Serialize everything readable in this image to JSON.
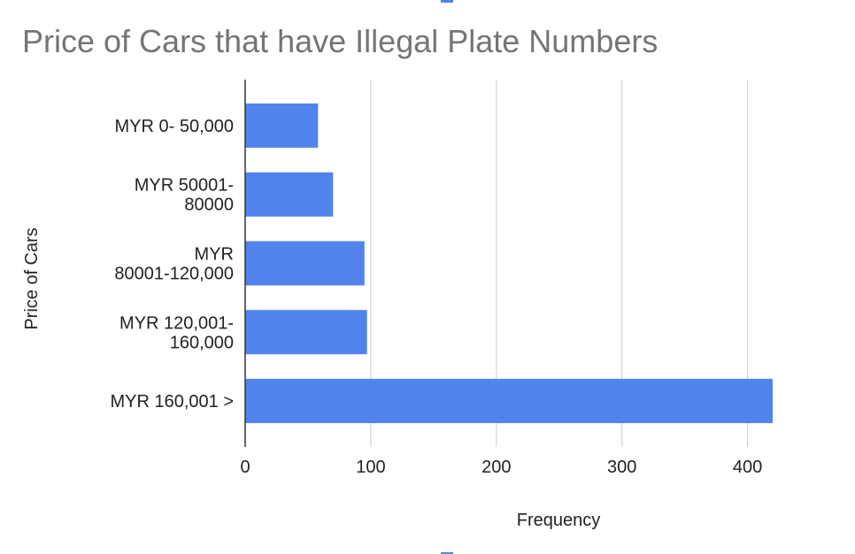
{
  "chart_data": {
    "type": "bar",
    "orientation": "horizontal",
    "title": "Price of Cars that have Illegal Plate Numbers",
    "x_label": "Frequency",
    "y_label": "Price of Cars",
    "categories": [
      "MYR 0- 50,000",
      "MYR 50001-\n80000",
      "MYR\n80001-120,000",
      "MYR 120,001-\n160,000",
      "MYR 160,001 >"
    ],
    "values": [
      58,
      70,
      95,
      97,
      420
    ],
    "color": "#5083ec",
    "xlim": [
      0,
      420
    ],
    "xticks": [
      0,
      100,
      200,
      300,
      400
    ],
    "grid": true
  }
}
